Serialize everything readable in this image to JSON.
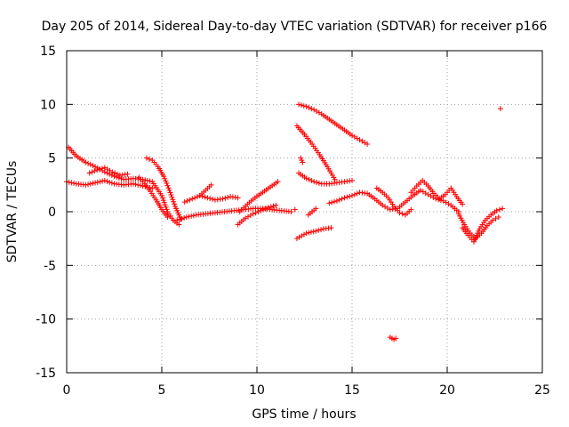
{
  "chart_data": {
    "type": "scatter",
    "title": "Day 205 of 2014, Sidereal Day-to-day VTEC variation (SDTVAR) for receiver p166",
    "xlabel": "GPS time / hours",
    "ylabel": "SDTVAR / TECUs",
    "xlim": [
      0,
      25
    ],
    "ylim": [
      -15,
      15
    ],
    "xticks": [
      0,
      5,
      10,
      15,
      20,
      25
    ],
    "yticks": [
      -15,
      -10,
      -5,
      0,
      5,
      10,
      15
    ],
    "xtick_labels": [
      "0",
      "5",
      "10",
      "15",
      "20",
      "25"
    ],
    "ytick_labels": [
      "-15",
      "-10",
      "-5",
      "0",
      "5",
      "10",
      "15"
    ],
    "grid": true,
    "marker": "+",
    "color": "#ff0000",
    "series": [
      {
        "name": "t0",
        "x": [
          0.1,
          0.5,
          1.0,
          1.5,
          2.0,
          2.5,
          3.0,
          3.5,
          4.0,
          4.5,
          5.0,
          5.3,
          5.6,
          5.9
        ],
        "y": [
          6.0,
          5.2,
          4.6,
          4.2,
          3.7,
          3.3,
          3.0,
          3.1,
          3.0,
          2.8,
          1.5,
          0.0,
          -0.8,
          -1.2
        ]
      },
      {
        "name": "t1",
        "x": [
          0.0,
          0.5,
          1.0,
          1.5,
          2.0,
          2.5,
          3.0,
          3.5,
          4.0,
          4.5
        ],
        "y": [
          2.8,
          2.6,
          2.5,
          2.7,
          2.9,
          2.6,
          2.5,
          2.6,
          2.4,
          2.2
        ]
      },
      {
        "name": "t2",
        "x": [
          1.2,
          1.6,
          2.0,
          2.4,
          2.8,
          3.2
        ],
        "y": [
          3.6,
          3.9,
          4.1,
          3.7,
          3.4,
          3.5
        ]
      },
      {
        "name": "t3",
        "x": [
          4.2,
          4.5,
          4.8,
          5.1,
          5.4,
          5.7,
          6.0
        ],
        "y": [
          5.0,
          4.8,
          4.2,
          3.3,
          2.0,
          0.5,
          -0.7
        ]
      },
      {
        "name": "t4",
        "x": [
          3.8,
          4.1,
          4.4,
          4.7,
          5.0,
          5.3
        ],
        "y": [
          3.2,
          2.6,
          1.9,
          1.1,
          0.2,
          -0.5
        ]
      },
      {
        "name": "t5",
        "x": [
          5.8,
          6.3,
          6.8,
          7.3,
          7.8,
          8.3,
          8.8,
          9.3,
          9.8,
          10.3,
          10.8,
          11.3,
          11.8,
          12.0
        ],
        "y": [
          -0.8,
          -0.5,
          -0.3,
          -0.2,
          -0.1,
          0.0,
          0.1,
          0.2,
          0.3,
          0.3,
          0.2,
          0.1,
          0.0,
          0.2
        ]
      },
      {
        "name": "t6",
        "x": [
          6.2,
          6.6,
          7.0,
          7.4,
          7.8,
          8.2,
          8.6,
          9.0
        ],
        "y": [
          0.9,
          1.2,
          1.5,
          1.3,
          1.1,
          1.2,
          1.4,
          1.3
        ]
      },
      {
        "name": "t7",
        "x": [
          7.0,
          7.3,
          7.6
        ],
        "y": [
          1.5,
          2.0,
          2.5
        ]
      },
      {
        "name": "t8",
        "x": [
          9.1,
          9.5,
          9.9,
          10.3,
          10.7,
          11.1
        ],
        "y": [
          0.0,
          0.7,
          1.3,
          1.8,
          2.3,
          2.8
        ]
      },
      {
        "name": "t9",
        "x": [
          9.0,
          9.4,
          9.8,
          10.2,
          10.6,
          11.0
        ],
        "y": [
          -1.2,
          -0.6,
          -0.2,
          0.1,
          0.4,
          0.6
        ]
      },
      {
        "name": "t10",
        "x": [
          12.2,
          12.6,
          13.0,
          13.4,
          13.8,
          14.2,
          14.6,
          15.0,
          15.4,
          15.8
        ],
        "y": [
          10.0,
          9.8,
          9.5,
          9.1,
          8.6,
          8.1,
          7.6,
          7.1,
          6.7,
          6.3
        ]
      },
      {
        "name": "t11",
        "x": [
          12.1,
          12.5,
          12.9,
          13.3,
          13.7,
          14.1
        ],
        "y": [
          8.0,
          7.2,
          6.3,
          5.3,
          4.2,
          3.0
        ]
      },
      {
        "name": "t12",
        "x": [
          12.2,
          12.6,
          13.0,
          13.4,
          13.8,
          14.2,
          14.6,
          15.0
        ],
        "y": [
          3.6,
          3.1,
          2.8,
          2.6,
          2.6,
          2.7,
          2.8,
          2.9
        ]
      },
      {
        "name": "t13",
        "x": [
          12.1,
          12.6,
          13.1,
          13.5,
          13.9
        ],
        "y": [
          -2.5,
          -2.0,
          -1.8,
          -1.6,
          -1.5
        ]
      },
      {
        "name": "t14",
        "x": [
          12.7,
          12.9,
          13.1
        ],
        "y": [
          -0.3,
          0.0,
          0.3
        ]
      },
      {
        "name": "t15",
        "x": [
          12.3,
          12.4
        ],
        "y": [
          5.0,
          4.6
        ]
      },
      {
        "name": "t16",
        "x": [
          13.8,
          14.2,
          14.6,
          15.0,
          15.4,
          15.8,
          16.2,
          16.6,
          17.0,
          17.4,
          17.8,
          18.2,
          18.6,
          19.0,
          19.4,
          19.8,
          20.2,
          20.6
        ],
        "y": [
          0.8,
          1.0,
          1.3,
          1.5,
          1.8,
          1.7,
          1.2,
          0.6,
          0.2,
          0.3,
          0.9,
          1.5,
          2.0,
          1.6,
          1.2,
          1.0,
          0.6,
          0.0
        ]
      },
      {
        "name": "t17",
        "x": [
          16.3,
          16.6,
          16.9,
          17.2,
          17.5,
          17.8,
          18.1
        ],
        "y": [
          2.2,
          1.8,
          1.3,
          0.5,
          -0.1,
          -0.3,
          0.2
        ]
      },
      {
        "name": "t18",
        "x": [
          18.1,
          18.4,
          18.7,
          19.0,
          19.3,
          19.6,
          19.9,
          20.2,
          20.5,
          20.8
        ],
        "y": [
          1.8,
          2.4,
          2.9,
          2.4,
          1.7,
          1.2,
          1.6,
          2.2,
          1.4,
          0.7
        ]
      },
      {
        "name": "t19",
        "x": [
          20.6,
          20.9,
          21.2,
          21.5,
          21.8,
          22.1,
          22.4,
          22.7
        ],
        "y": [
          -0.2,
          -1.2,
          -2.0,
          -2.5,
          -2.0,
          -1.3,
          -0.8,
          -0.5
        ]
      },
      {
        "name": "t20",
        "x": [
          20.8,
          21.1,
          21.4,
          21.7,
          22.0,
          22.3,
          22.6,
          22.9
        ],
        "y": [
          -1.5,
          -2.2,
          -2.8,
          -1.6,
          -0.8,
          -0.3,
          0.1,
          0.3
        ]
      },
      {
        "name": "t21",
        "x": [
          17.0,
          17.1,
          17.2,
          17.3
        ],
        "y": [
          -11.7,
          -11.8,
          -11.9,
          -11.8
        ]
      },
      {
        "name": "t22",
        "x": [
          22.8
        ],
        "y": [
          9.6
        ]
      }
    ]
  }
}
